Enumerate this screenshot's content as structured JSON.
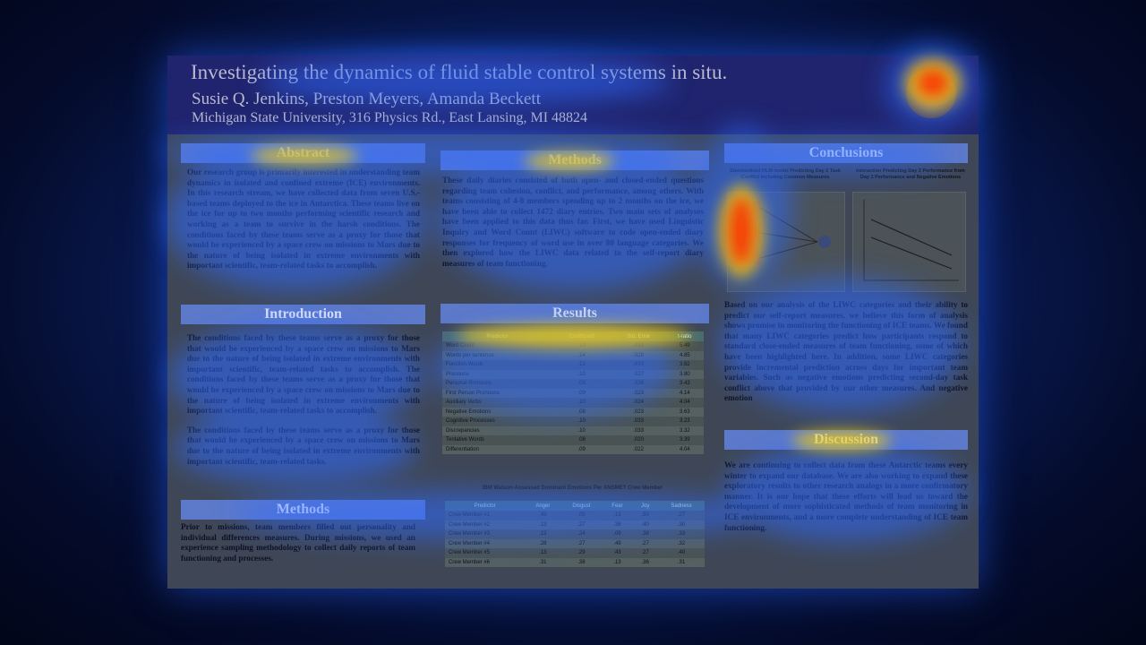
{
  "poster": {
    "title": "Investigating the dynamics of fluid stable control systems in situ.",
    "authors": "Susie Q. Jenkins, Preston Meyers, Amanda Beckett",
    "affiliation": "Michigan State University, 316 Physics Rd., East Lansing, MI 48824"
  },
  "abstract": {
    "heading": "Abstract",
    "text": "Our research group is primarily interested in understanding team dynamics in isolated and confined extreme (ICE) environments. In this research stream, we have collected data from seven U.S.-based teams deployed to the ice in Antarctica. These teams live on the ice for up to two months performing scientific research and working as a team to survive in the harsh conditions. The conditions faced by these teams serve as a proxy for those that would be experienced by a space crew on missions to Mars due to the nature of being isolated in extreme environments with important scientific, team-related tasks to accomplish."
  },
  "introduction": {
    "heading": "Introduction",
    "p1": "The conditions faced by these teams serve as a proxy for those that would be experienced by a space crew on missions to Mars due to the nature of being isolated in extreme environments with important scientific, team-related tasks to accomplish. The conditions faced by these teams serve as a proxy for those that would be experienced by a space crew on missions to Mars due to the nature of being isolated in extreme environments with important scientific, team-related tasks to accomplish.",
    "p2": "The conditions faced by these teams serve as a proxy for those that would be experienced by a space crew on missions to Mars due to the nature of being isolated in extreme environments with important scientific, team-related tasks."
  },
  "methods_left": {
    "heading": "Methods",
    "text": "Prior to missions, team members filled out personality and individual differences measures. During missions, we used an experience sampling methodology to collect daily reports of team functioning and processes."
  },
  "methods_mid": {
    "heading": "Methods",
    "text": "These daily diaries consisted of both open- and closed-ended questions regarding team cohesion, conflict, and performance, among others. With teams consisting of 4-8 members spending up to 2 months on the ice, we have been able to collect 1472 diary entries. Two main sets of analyses have been applied to this data thus far. First, we have used Linguistic Inquiry and Word Count (LIWC) software to code open-ended diary responses for frequency of word use in over 80 language categories. We then explored how the LIWC data related to the self-report diary measures of team functioning."
  },
  "results": {
    "heading": "Results",
    "table1": {
      "headers": [
        "Predictor",
        "Coefficient",
        "Std. Error",
        "t-ratio"
      ],
      "rows": [
        [
          "Word Count",
          ".19",
          ".033",
          "5.49"
        ],
        [
          "Words per sentence",
          ".14",
          ".028",
          "4.85"
        ],
        [
          "Function Words",
          ".12",
          ".033",
          "3.82"
        ],
        [
          "Pronouns",
          ".10",
          ".027",
          "3.80"
        ],
        [
          "Personal Pronouns",
          ".09",
          ".026",
          "3.43"
        ],
        [
          "First Person Pronouns",
          ".09",
          ".023",
          "4.14"
        ],
        [
          "Auxiliary Verbs",
          ".10",
          ".024",
          "4.04"
        ],
        [
          "Negative Emotions",
          ".08",
          ".023",
          "3.63"
        ],
        [
          "Cognitive Processes",
          ".10",
          ".033",
          "3.23"
        ],
        [
          "Discrepancies",
          ".10",
          ".033",
          "3.32"
        ],
        [
          "Tentative Words",
          ".08",
          ".020",
          "3.39"
        ],
        [
          "Differentiation",
          ".09",
          ".022",
          "4.04"
        ]
      ]
    },
    "table2_caption": "IBM Watson-Assessed Dominant Emotions Per ANSMET Crew Member",
    "table2": {
      "headers": [
        "Predictor",
        "Anger",
        "Disgust",
        "Fear",
        "Joy",
        "Sadness"
      ],
      "rows": [
        [
          "Crew Member #1",
          ".43",
          ".09",
          ".13",
          ".50",
          ".27"
        ],
        [
          "Crew Member #2",
          ".13",
          ".27",
          ".38",
          ".40",
          ".30"
        ],
        [
          "Crew Member #3",
          ".13",
          ".24",
          ".09",
          ".38",
          ".33"
        ],
        [
          "Crew Member #4",
          ".28",
          ".27",
          ".49",
          ".27",
          ".32"
        ],
        [
          "Crew Member #5",
          ".13",
          ".29",
          ".43",
          ".27",
          ".40"
        ],
        [
          "Crew Member #6",
          ".31",
          ".38",
          ".13",
          ".36",
          ".31"
        ]
      ]
    }
  },
  "conclusions": {
    "heading": "Conclusions",
    "chart1_caption": "Standardized HLM model Predicting Day 2 Task Conflict including Common Measures",
    "chart2_caption": "Interaction Predicting Day 2 Performance from Day 1 Performance and Negative Emotions",
    "text": "Based on our analysis of the LIWC categories and their ability to predict our self-report measures, we believe this form of analysis shows promise in monitoring the functioning of ICE teams. We found that many LIWC categories predict how participants respond to standard close-ended measures of team functioning, some of which have been highlighted here. In addition, some LIWC categories provide incremental prediction across days for important team variables. Such as negative emotions predicting second-day task conflict above that provided by our other measures. And negative emotion"
  },
  "discussion": {
    "heading": "Discussion",
    "text": "We are continuing to collect data from these Antarctic teams every winter to expand our database. We are also working to expand these exploratory results to other research analogs in a more confirmatory manner. It is our hope that these efforts will lead us toward the development of more sophisticated methods of team monitoring in ICE environments, and a more complete understanding of ICE team functioning."
  },
  "colors": {
    "heat_hot": "#ff2a00",
    "heat_warm": "#ffd400",
    "heat_cool": "#2f6bff"
  }
}
